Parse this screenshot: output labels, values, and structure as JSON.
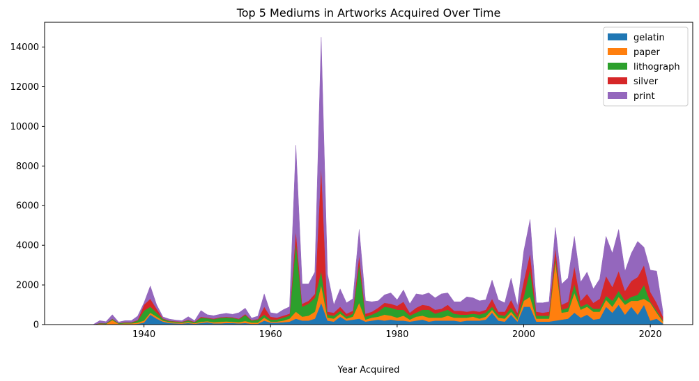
{
  "chart_data": {
    "type": "area",
    "title": "Top 5 Mediums in Artworks Acquired Over Time",
    "xlabel": "Year Acquired",
    "ylabel": "",
    "xlim": [
      1924.3,
      2026.7
    ],
    "ylim": [
      0,
      15250
    ],
    "xticks": [
      1940,
      1960,
      1980,
      2000,
      2020
    ],
    "yticks": [
      0,
      2000,
      4000,
      6000,
      8000,
      10000,
      12000,
      14000
    ],
    "stacked": true,
    "legend_position": "top-right",
    "years": [
      1929,
      1930,
      1931,
      1932,
      1933,
      1934,
      1935,
      1936,
      1937,
      1938,
      1939,
      1940,
      1941,
      1942,
      1943,
      1944,
      1945,
      1946,
      1947,
      1948,
      1949,
      1950,
      1951,
      1952,
      1953,
      1954,
      1955,
      1956,
      1957,
      1958,
      1959,
      1960,
      1961,
      1962,
      1963,
      1964,
      1965,
      1966,
      1967,
      1968,
      1969,
      1970,
      1971,
      1972,
      1973,
      1974,
      1975,
      1976,
      1977,
      1978,
      1979,
      1980,
      1981,
      1982,
      1983,
      1984,
      1985,
      1986,
      1987,
      1988,
      1989,
      1990,
      1991,
      1992,
      1993,
      1994,
      1995,
      1996,
      1997,
      1998,
      1999,
      2000,
      2001,
      2002,
      2003,
      2004,
      2005,
      2006,
      2007,
      2008,
      2009,
      2010,
      2011,
      2012,
      2013,
      2014,
      2015,
      2016,
      2017,
      2018,
      2019,
      2020,
      2021,
      2022
    ],
    "series": [
      {
        "name": "gelatin",
        "color": "#1f77b4",
        "values": [
          0,
          0,
          0,
          0,
          20,
          10,
          30,
          10,
          20,
          20,
          40,
          100,
          500,
          300,
          150,
          80,
          60,
          50,
          80,
          40,
          80,
          120,
          60,
          60,
          80,
          80,
          60,
          80,
          40,
          40,
          200,
          100,
          100,
          120,
          150,
          300,
          200,
          200,
          300,
          1100,
          200,
          150,
          400,
          200,
          250,
          300,
          150,
          200,
          250,
          200,
          250,
          200,
          200,
          150,
          200,
          250,
          150,
          200,
          200,
          200,
          200,
          150,
          200,
          200,
          200,
          250,
          600,
          200,
          150,
          500,
          150,
          900,
          900,
          150,
          150,
          150,
          200,
          250,
          300,
          600,
          350,
          500,
          250,
          300,
          900,
          600,
          1000,
          500,
          900,
          500,
          1000,
          200,
          300,
          50
        ]
      },
      {
        "name": "paper",
        "color": "#ff7f0e",
        "values": [
          0,
          0,
          0,
          0,
          30,
          20,
          200,
          30,
          40,
          40,
          60,
          100,
          100,
          100,
          50,
          50,
          40,
          40,
          50,
          30,
          60,
          50,
          60,
          80,
          80,
          60,
          60,
          100,
          60,
          60,
          150,
          50,
          50,
          80,
          150,
          350,
          200,
          250,
          350,
          900,
          150,
          150,
          150,
          100,
          150,
          800,
          100,
          150,
          150,
          300,
          200,
          150,
          250,
          100,
          200,
          200,
          200,
          150,
          150,
          250,
          150,
          200,
          150,
          200,
          100,
          150,
          150,
          150,
          150,
          150,
          100,
          300,
          500,
          150,
          150,
          150,
          3000,
          350,
          350,
          1000,
          400,
          400,
          400,
          350,
          350,
          300,
          400,
          500,
          300,
          700,
          300,
          900,
          300,
          100
        ]
      },
      {
        "name": "lithograph",
        "color": "#2ca02c",
        "values": [
          0,
          0,
          0,
          0,
          20,
          30,
          50,
          30,
          40,
          40,
          100,
          500,
          300,
          200,
          80,
          50,
          50,
          40,
          80,
          50,
          200,
          150,
          150,
          200,
          200,
          200,
          150,
          300,
          100,
          150,
          150,
          100,
          100,
          150,
          150,
          3500,
          500,
          600,
          700,
          700,
          150,
          150,
          150,
          100,
          150,
          2000,
          150,
          150,
          250,
          400,
          400,
          400,
          300,
          200,
          200,
          300,
          400,
          200,
          300,
          300,
          200,
          150,
          150,
          150,
          200,
          200,
          150,
          150,
          150,
          200,
          150,
          200,
          1400,
          150,
          150,
          150,
          200,
          150,
          200,
          450,
          150,
          150,
          150,
          150,
          200,
          300,
          300,
          200,
          200,
          300,
          700,
          50,
          100,
          50
        ]
      },
      {
        "name": "silver",
        "color": "#d62728",
        "values": [
          0,
          0,
          0,
          0,
          10,
          10,
          20,
          10,
          20,
          20,
          30,
          300,
          400,
          200,
          30,
          20,
          20,
          20,
          30,
          20,
          50,
          30,
          30,
          30,
          30,
          30,
          30,
          50,
          30,
          30,
          400,
          150,
          100,
          100,
          100,
          600,
          150,
          150,
          200,
          5300,
          150,
          150,
          200,
          150,
          150,
          400,
          150,
          150,
          200,
          200,
          200,
          200,
          400,
          150,
          250,
          250,
          200,
          200,
          150,
          250,
          150,
          200,
          150,
          150,
          150,
          150,
          400,
          150,
          200,
          400,
          200,
          800,
          800,
          200,
          150,
          200,
          500,
          250,
          300,
          900,
          300,
          500,
          300,
          500,
          1000,
          700,
          1000,
          500,
          800,
          900,
          1000,
          500,
          400,
          200
        ]
      },
      {
        "name": "print",
        "color": "#9467bd",
        "values": [
          0,
          10,
          10,
          10,
          120,
          80,
          200,
          50,
          80,
          80,
          200,
          100,
          650,
          200,
          80,
          80,
          60,
          50,
          160,
          60,
          320,
          150,
          150,
          150,
          180,
          150,
          300,
          300,
          100,
          150,
          650,
          200,
          200,
          300,
          350,
          4300,
          1000,
          850,
          1100,
          6500,
          1900,
          400,
          900,
          550,
          600,
          1300,
          650,
          500,
          350,
          400,
          550,
          300,
          600,
          450,
          700,
          500,
          650,
          600,
          750,
          600,
          450,
          450,
          750,
          650,
          550,
          500,
          950,
          600,
          450,
          1100,
          350,
          1500,
          1700,
          450,
          500,
          500,
          1000,
          1050,
          1200,
          1500,
          950,
          1100,
          700,
          1000,
          2000,
          1700,
          2100,
          1000,
          1400,
          1800,
          900,
          1100,
          1600,
          250
        ]
      }
    ]
  }
}
